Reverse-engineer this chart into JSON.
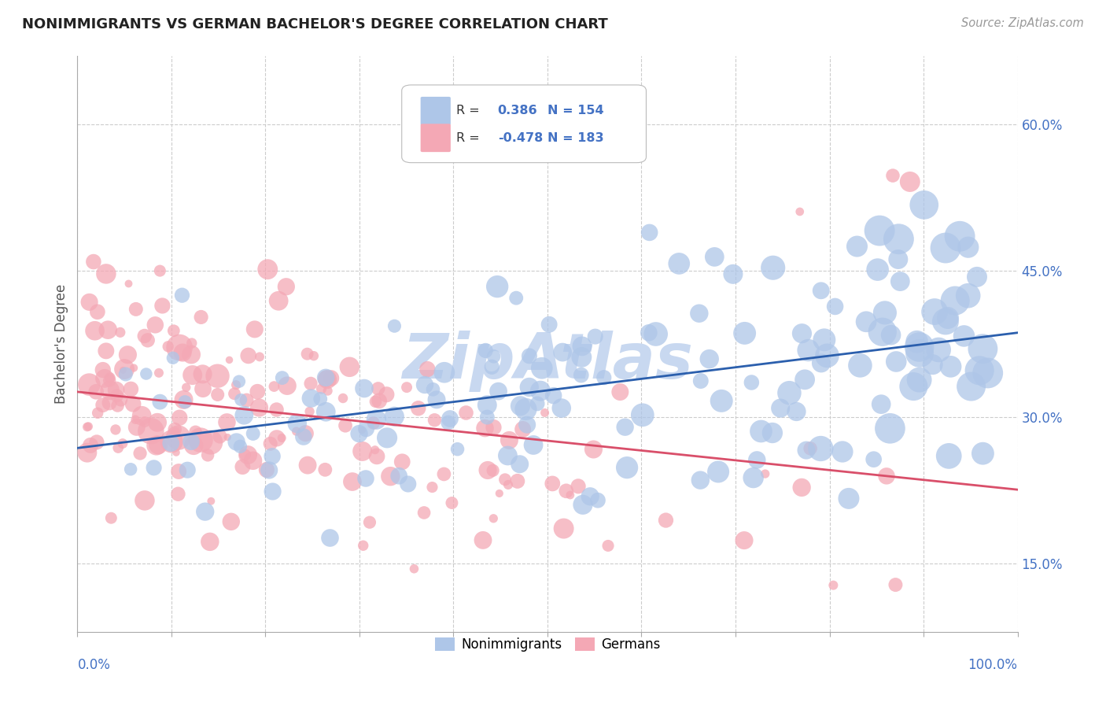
{
  "title": "NONIMMIGRANTS VS GERMAN BACHELOR'S DEGREE CORRELATION CHART",
  "source": "Source: ZipAtlas.com",
  "ylabel": "Bachelor's Degree",
  "right_ytick_values": [
    15.0,
    30.0,
    45.0,
    60.0
  ],
  "right_ytick_labels": [
    "15.0%",
    "30.0%",
    "45.0%",
    "60.0%"
  ],
  "blue_scatter_color": "#aec6e8",
  "pink_scatter_color": "#f4a8b5",
  "trend_blue_color": "#2b5fad",
  "trend_pink_color": "#d94f6a",
  "background_color": "#ffffff",
  "grid_color": "#cccccc",
  "watermark_color": "#c8d8f0",
  "R_blue": 0.386,
  "N_blue": 154,
  "R_pink": -0.478,
  "N_pink": 183,
  "x_range": [
    0,
    100
  ],
  "y_range": [
    8,
    67
  ],
  "figsize": [
    14.06,
    8.92
  ],
  "dpi": 100,
  "legend_text_color": "#4472c4",
  "legend_label_color": "#333333"
}
